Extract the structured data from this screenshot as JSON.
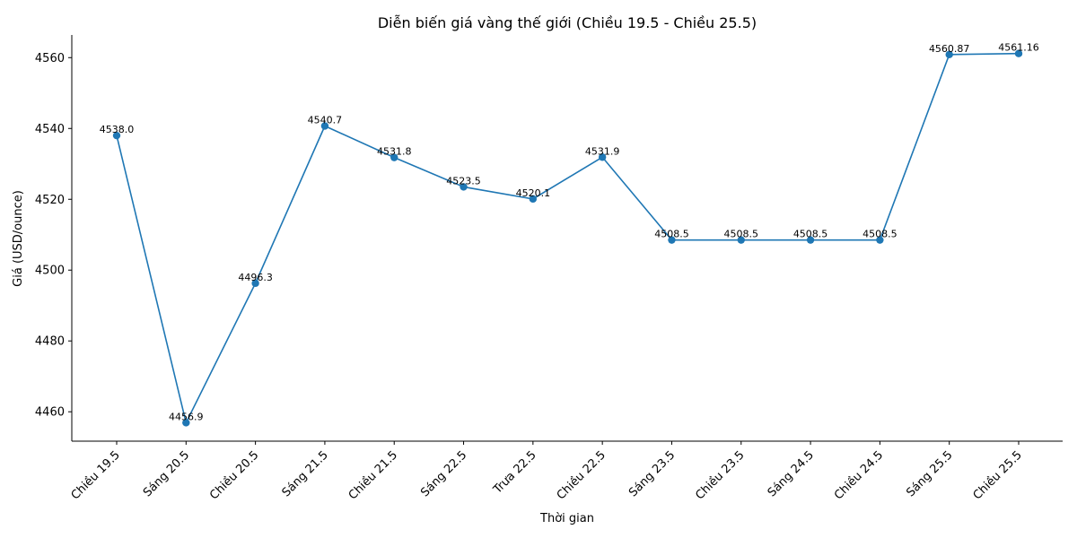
{
  "chart_data": {
    "type": "line",
    "title": "Diễn biến giá vàng thế giới (Chiều 19.5 - Chiều 25.5)",
    "xlabel": "Thời gian",
    "ylabel": "Giá (USD/ounce)",
    "categories": [
      "Chiều 19.5",
      "Sáng 20.5",
      "Chiều 20.5",
      "Sáng 21.5",
      "Chiều 21.5",
      "Sáng 22.5",
      "Trưa 22.5",
      "Chiều 22.5",
      "Sáng 23.5",
      "Chiều 23.5",
      "Sáng 24.5",
      "Chiều 24.5",
      "Sáng 25.5",
      "Chiều 25.5"
    ],
    "values": [
      4538.0,
      4456.9,
      4496.3,
      4540.7,
      4531.8,
      4523.5,
      4520.1,
      4531.9,
      4508.5,
      4508.5,
      4508.5,
      4508.5,
      4560.87,
      4561.16
    ],
    "value_labels": [
      "4538.0",
      "4456.9",
      "4496.3",
      "4540.7",
      "4531.8",
      "4523.5",
      "4520.1",
      "4531.9",
      "4508.5",
      "4508.5",
      "4508.5",
      "4508.5",
      "4560.87",
      "4561.16"
    ],
    "yticks": [
      4460,
      4480,
      4500,
      4520,
      4540,
      4560
    ],
    "ylim": [
      4451.7,
      4566.4
    ],
    "grid": false,
    "color": "#1f77b4"
  }
}
